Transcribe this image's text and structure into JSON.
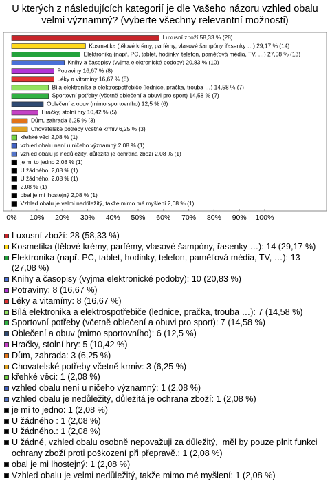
{
  "chart_data": {
    "type": "bar",
    "orientation": "horizontal",
    "title": "U kterých z následujících kategorií je dle Vašeho názoru vzhled obalu velmi významný? (vyberte všechny relevantní možnosti)",
    "categories": [
      "Luxusní zboží: 28 (58,33 %)",
      "Kosmetika (tělové krémy, parfémy, vlasové šampóny, řasenky …): 14 (29,17 %)",
      "Elektronika (např. PC, tablet, hodinky, telefon, paměťová média, TV, …): 13 (27,08 %)",
      "Knihy a časopisy (vyjma elektronické podoby): 10 (20,83 %)",
      "Potraviny: 8 (16,67 %)",
      "Léky a vitamíny: 8 (16,67 %)",
      "Bílá elektronika a elektrospotřebiče (lednice, pračka, trouba …): 7 (14,58 %)",
      "Sportovní potřeby (včetně oblečení a obuvi pro sport): 7 (14,58 %)",
      "Oblečení a obuv (mimo sportovního): 6 (12,5 %)",
      "Hračky, stolní hry: 5 (10,42 %)",
      "Dům, zahrada: 3 (6,25 %)",
      "Chovatelské potřeby včetně krmiv: 3 (6,25 %)",
      "křehké věci: 1 (2,08 %)",
      "vzhled obalu není u ničeho významný: 1 (2,08 %)",
      "vzhled obalu je nedůležitý, důležitá je ochrana zboží: 1 (2,08 %)",
      "je mi to jedno: 1 (2,08 %)",
      "U žádného : 1 (2,08 %)",
      "U žádného.: 1 (2,08 %)",
      "U žádné, vzhled obalu osobně nepovažuji za důležitý,  měl by pouze plnit funkci ochrany zboží proti poškození při přepravě.: 1 (2,08 %)",
      "obal je mi lhostejný: 1 (2,08 %)",
      "Vzhled obalu je velmi nedůležitý, takže mimo mé myšlení: 1 (2,08 %)"
    ],
    "values": [
      58.33,
      29.17,
      27.08,
      20.83,
      16.67,
      16.67,
      14.58,
      14.58,
      12.5,
      10.42,
      6.25,
      6.25,
      2.08,
      2.08,
      2.08,
      2.08,
      2.08,
      2.08,
      2.08,
      2.08,
      2.08
    ],
    "value_labels": [
      "Luxusní zboží 58,33 % (28)",
      "Kosmetika (tělové krémy, parfémy, vlasové šampóny, řasenky …) 29,17 % (14)",
      "Elektronika (např. PC, tablet, hodinky, telefon, paměťová média, TV, …) 27,08 % (13)",
      "Knihy a časopisy (vyjma elektronické podoby) 20,83 % (10)",
      "Potraviny 16,67 % (8)",
      "Léky a vitamíny 16,67 % (8)",
      "Bílá elektronika a elektrospotřebiče (lednice, pračka, trouba …) 14,58 % (7)",
      "Sportovní potřeby (včetně oblečení a obuvi pro sport) 14,58 % (7)",
      "Oblečení a obuv (mimo sportovního) 12,5 % (6)",
      "Hračky, stolní hry 10,42 % (5)",
      "Dům, zahrada 6,25 % (3)",
      "Chovatelské potřeby včetně krmiv 6,25 % (3)",
      "křehké věci 2,08 % (1)",
      "vzhled obalu není u ničeho významný 2,08 % (1)",
      "vzhled obalu je nedůležitý, důležitá je ochrana zboží 2,08 % (1)",
      "je mi to jedno 2,08 % (1)",
      "U žádného  2,08 % (1)",
      "U žádného. 2,08 % (1)",
      "2,08 % (1)",
      "obal je mi lhostejný 2,08 % (1)",
      "Vzhled obalu je velmi nedůležitý, takže mimo mé myšlení 2,08 % (1)"
    ],
    "colors": [
      "#c8262b",
      "#ffd81a",
      "#23a23c",
      "#4a70d8",
      "#b233d6",
      "#e23232",
      "#92e260",
      "#32b244",
      "#2f4a72",
      "#c442c4",
      "#e2741a",
      "#e2a424",
      "#74d444",
      "#4262c4",
      "#5474c8",
      "#000000",
      "#000000",
      "#000000",
      "#000000",
      "#000000",
      "#000000"
    ],
    "xlim": [
      0,
      100
    ],
    "xticks": [
      {
        "value": 0,
        "label": "0%"
      },
      {
        "value": 10,
        "label": "10%"
      },
      {
        "value": 20,
        "label": "20%"
      },
      {
        "value": 30,
        "label": "30%"
      },
      {
        "value": 40,
        "label": "40%"
      },
      {
        "value": 50,
        "label": "50%"
      },
      {
        "value": 60,
        "label": "60%"
      },
      {
        "value": 70,
        "label": "70%"
      },
      {
        "value": 80,
        "label": "80%"
      },
      {
        "value": 90,
        "label": "90%"
      },
      {
        "value": 100,
        "label": "100%"
      }
    ],
    "legend": "bottom"
  }
}
